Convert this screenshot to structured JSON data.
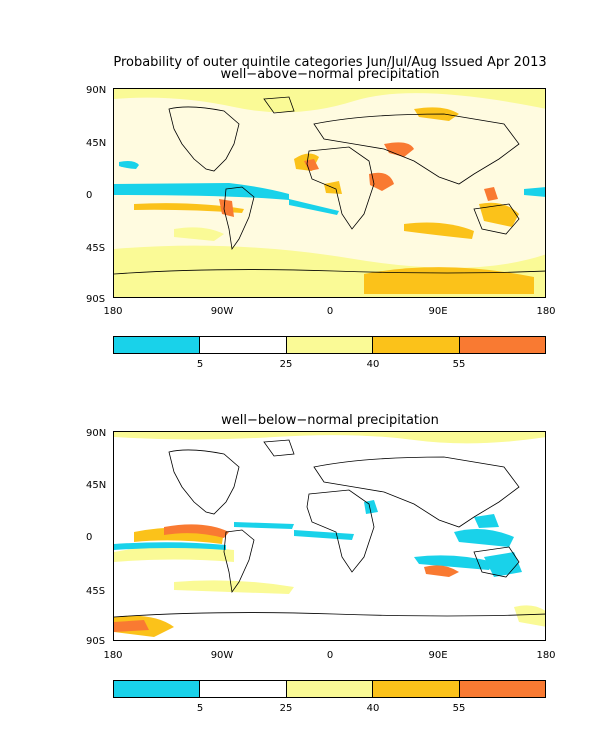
{
  "figure": {
    "title_line1": "Probability of outer quintile categories Jun/Jul/Aug Issued Apr 2013",
    "panel_top_title": "well−above−normal precipitation",
    "panel_bottom_title": "well−below−normal precipitation"
  },
  "axes": {
    "lat_labels": [
      "90N",
      "45N",
      "0",
      "45S",
      "90S"
    ],
    "lon_labels": [
      "180",
      "90W",
      "0",
      "90E",
      "180"
    ]
  },
  "colorbar": {
    "labels": [
      "5",
      "25",
      "40",
      "55"
    ],
    "colors": [
      "#19d2ea",
      "#ffffff",
      "#fafa96",
      "#fbc21a",
      "#f97a32"
    ]
  }
}
